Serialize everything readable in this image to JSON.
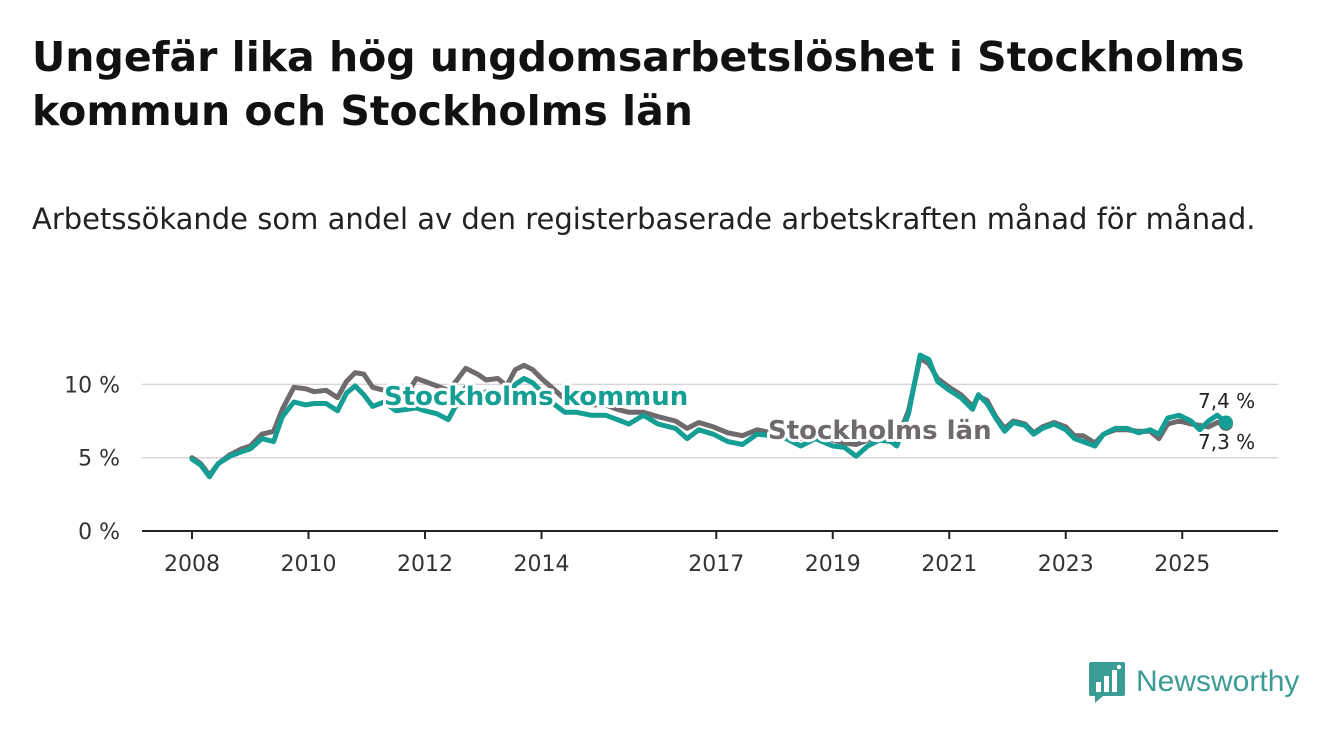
{
  "title": "Ungefär lika hög ungdomsarbetslöshet i Stockholms kommun och Stockholms län",
  "subtitle": "Arbetssökande som andel av den registerbaserade arbetskraften månad för månad.",
  "brand": {
    "name": "Newsworthy",
    "icon": "newsworthy-logo-icon",
    "color": "#3b9c95"
  },
  "chart_data": {
    "type": "line",
    "x_unit": "year (decimal)",
    "x_range": [
      2007.2,
      2026.5
    ],
    "ylim": [
      0,
      13
    ],
    "y_ticks": [
      0,
      5,
      10
    ],
    "y_tick_labels": [
      "0 %",
      "5 %",
      "10 %"
    ],
    "x_ticks": [
      2008,
      2010,
      2012,
      2014,
      2017,
      2019,
      2021,
      2023,
      2025
    ],
    "x_tick_labels": [
      "2008",
      "2010",
      "2012",
      "2014",
      "2017",
      "2019",
      "2021",
      "2023",
      "2025"
    ],
    "grid": "horizontal",
    "series": [
      {
        "name": "Stockholms län",
        "color": "#6e6a6e",
        "end_label": "7,3 %",
        "points": [
          [
            2008.0,
            5.0
          ],
          [
            2008.15,
            4.6
          ],
          [
            2008.3,
            3.8
          ],
          [
            2008.45,
            4.6
          ],
          [
            2008.65,
            5.2
          ],
          [
            2008.85,
            5.6
          ],
          [
            2009.0,
            5.8
          ],
          [
            2009.2,
            6.6
          ],
          [
            2009.4,
            6.8
          ],
          [
            2009.55,
            8.3
          ],
          [
            2009.75,
            9.8
          ],
          [
            2009.95,
            9.7
          ],
          [
            2010.1,
            9.5
          ],
          [
            2010.3,
            9.6
          ],
          [
            2010.5,
            9.1
          ],
          [
            2010.65,
            10.2
          ],
          [
            2010.8,
            10.8
          ],
          [
            2010.95,
            10.7
          ],
          [
            2011.1,
            9.8
          ],
          [
            2011.3,
            9.6
          ],
          [
            2011.5,
            9.3
          ],
          [
            2011.7,
            9.4
          ],
          [
            2011.85,
            10.4
          ],
          [
            2012.0,
            10.2
          ],
          [
            2012.2,
            9.9
          ],
          [
            2012.4,
            9.6
          ],
          [
            2012.55,
            10.3
          ],
          [
            2012.7,
            11.1
          ],
          [
            2012.9,
            10.7
          ],
          [
            2013.05,
            10.3
          ],
          [
            2013.25,
            10.4
          ],
          [
            2013.4,
            9.9
          ],
          [
            2013.55,
            11.0
          ],
          [
            2013.7,
            11.3
          ],
          [
            2013.85,
            11.0
          ],
          [
            2014.0,
            10.4
          ],
          [
            2014.2,
            9.7
          ],
          [
            2014.4,
            9.0
          ],
          [
            2014.6,
            9.0
          ],
          [
            2014.85,
            8.6
          ],
          [
            2015.1,
            8.6
          ],
          [
            2015.3,
            8.3
          ],
          [
            2015.5,
            8.1
          ],
          [
            2015.75,
            8.1
          ],
          [
            2016.0,
            7.8
          ],
          [
            2016.3,
            7.5
          ],
          [
            2016.5,
            7.0
          ],
          [
            2016.7,
            7.4
          ],
          [
            2016.95,
            7.1
          ],
          [
            2017.2,
            6.7
          ],
          [
            2017.45,
            6.5
          ],
          [
            2017.7,
            6.9
          ],
          [
            2017.95,
            6.7
          ],
          [
            2018.2,
            6.5
          ],
          [
            2018.45,
            6.3
          ],
          [
            2018.7,
            6.5
          ],
          [
            2019.0,
            6.2
          ],
          [
            2019.2,
            6.0
          ],
          [
            2019.4,
            5.9
          ],
          [
            2019.6,
            6.2
          ],
          [
            2019.8,
            6.5
          ],
          [
            2020.0,
            6.4
          ],
          [
            2020.1,
            6.2
          ],
          [
            2020.3,
            8.2
          ],
          [
            2020.5,
            11.8
          ],
          [
            2020.65,
            11.4
          ],
          [
            2020.8,
            10.4
          ],
          [
            2021.0,
            9.8
          ],
          [
            2021.2,
            9.3
          ],
          [
            2021.4,
            8.5
          ],
          [
            2021.5,
            9.2
          ],
          [
            2021.65,
            8.9
          ],
          [
            2021.8,
            7.8
          ],
          [
            2021.95,
            7.0
          ],
          [
            2022.1,
            7.5
          ],
          [
            2022.3,
            7.3
          ],
          [
            2022.45,
            6.7
          ],
          [
            2022.6,
            7.1
          ],
          [
            2022.8,
            7.4
          ],
          [
            2023.0,
            7.1
          ],
          [
            2023.15,
            6.5
          ],
          [
            2023.3,
            6.5
          ],
          [
            2023.5,
            6.0
          ],
          [
            2023.65,
            6.6
          ],
          [
            2023.85,
            6.9
          ],
          [
            2024.05,
            6.9
          ],
          [
            2024.25,
            6.8
          ],
          [
            2024.45,
            6.8
          ],
          [
            2024.6,
            6.3
          ],
          [
            2024.75,
            7.3
          ],
          [
            2024.95,
            7.5
          ],
          [
            2025.15,
            7.3
          ],
          [
            2025.3,
            7.2
          ],
          [
            2025.45,
            7.1
          ],
          [
            2025.6,
            7.4
          ],
          [
            2025.75,
            7.3
          ]
        ]
      },
      {
        "name": "Stockholms kommun",
        "color": "#149e94",
        "end_label": "7,4 %",
        "points": [
          [
            2008.0,
            4.9
          ],
          [
            2008.15,
            4.5
          ],
          [
            2008.3,
            3.7
          ],
          [
            2008.45,
            4.6
          ],
          [
            2008.65,
            5.1
          ],
          [
            2008.85,
            5.4
          ],
          [
            2009.0,
            5.6
          ],
          [
            2009.2,
            6.3
          ],
          [
            2009.4,
            6.1
          ],
          [
            2009.55,
            7.8
          ],
          [
            2009.75,
            8.8
          ],
          [
            2009.95,
            8.6
          ],
          [
            2010.1,
            8.7
          ],
          [
            2010.3,
            8.7
          ],
          [
            2010.5,
            8.2
          ],
          [
            2010.65,
            9.4
          ],
          [
            2010.8,
            9.9
          ],
          [
            2010.95,
            9.3
          ],
          [
            2011.1,
            8.5
          ],
          [
            2011.3,
            8.8
          ],
          [
            2011.5,
            8.2
          ],
          [
            2011.7,
            8.3
          ],
          [
            2011.85,
            8.4
          ],
          [
            2012.0,
            8.2
          ],
          [
            2012.2,
            8.0
          ],
          [
            2012.4,
            7.6
          ],
          [
            2012.55,
            8.7
          ],
          [
            2012.7,
            9.8
          ],
          [
            2012.9,
            9.2
          ],
          [
            2013.05,
            9.5
          ],
          [
            2013.25,
            9.5
          ],
          [
            2013.4,
            9.0
          ],
          [
            2013.55,
            10.0
          ],
          [
            2013.7,
            10.4
          ],
          [
            2013.85,
            10.1
          ],
          [
            2014.0,
            9.5
          ],
          [
            2014.2,
            8.7
          ],
          [
            2014.4,
            8.1
          ],
          [
            2014.6,
            8.1
          ],
          [
            2014.85,
            7.9
          ],
          [
            2015.1,
            7.9
          ],
          [
            2015.3,
            7.6
          ],
          [
            2015.5,
            7.3
          ],
          [
            2015.75,
            7.9
          ],
          [
            2016.0,
            7.3
          ],
          [
            2016.3,
            7.0
          ],
          [
            2016.5,
            6.3
          ],
          [
            2016.7,
            6.9
          ],
          [
            2016.95,
            6.6
          ],
          [
            2017.2,
            6.1
          ],
          [
            2017.45,
            5.9
          ],
          [
            2017.7,
            6.6
          ],
          [
            2017.95,
            6.5
          ],
          [
            2018.2,
            6.3
          ],
          [
            2018.45,
            5.8
          ],
          [
            2018.7,
            6.3
          ],
          [
            2019.0,
            5.8
          ],
          [
            2019.2,
            5.7
          ],
          [
            2019.4,
            5.1
          ],
          [
            2019.6,
            5.8
          ],
          [
            2019.8,
            6.2
          ],
          [
            2020.0,
            6.1
          ],
          [
            2020.1,
            5.8
          ],
          [
            2020.3,
            8.0
          ],
          [
            2020.5,
            12.0
          ],
          [
            2020.65,
            11.7
          ],
          [
            2020.8,
            10.2
          ],
          [
            2021.0,
            9.6
          ],
          [
            2021.2,
            9.1
          ],
          [
            2021.4,
            8.3
          ],
          [
            2021.5,
            9.3
          ],
          [
            2021.65,
            8.7
          ],
          [
            2021.8,
            7.7
          ],
          [
            2021.95,
            6.8
          ],
          [
            2022.1,
            7.4
          ],
          [
            2022.3,
            7.2
          ],
          [
            2022.45,
            6.6
          ],
          [
            2022.6,
            7.0
          ],
          [
            2022.8,
            7.3
          ],
          [
            2023.0,
            6.9
          ],
          [
            2023.15,
            6.3
          ],
          [
            2023.3,
            6.1
          ],
          [
            2023.5,
            5.8
          ],
          [
            2023.65,
            6.6
          ],
          [
            2023.85,
            7.0
          ],
          [
            2024.05,
            7.0
          ],
          [
            2024.25,
            6.7
          ],
          [
            2024.45,
            6.9
          ],
          [
            2024.6,
            6.6
          ],
          [
            2024.75,
            7.7
          ],
          [
            2024.95,
            7.9
          ],
          [
            2025.15,
            7.5
          ],
          [
            2025.3,
            6.9
          ],
          [
            2025.45,
            7.5
          ],
          [
            2025.6,
            7.9
          ],
          [
            2025.75,
            7.4
          ]
        ]
      }
    ]
  }
}
